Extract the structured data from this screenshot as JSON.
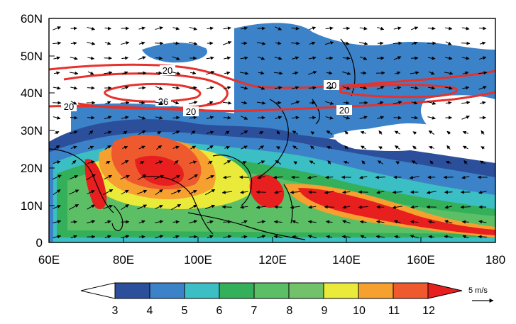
{
  "map": {
    "lat_ticks": [
      "60N",
      "50N",
      "40N",
      "30N",
      "20N",
      "10N",
      "0"
    ],
    "lon_ticks": [
      "60E",
      "80E",
      "100E",
      "120E",
      "140E",
      "160E",
      "180"
    ],
    "contour_labels": [
      "20",
      "26",
      "20",
      "20",
      "20",
      "20"
    ],
    "contour_color": "#e8312b"
  },
  "colorbar": {
    "labels": [
      "3",
      "4",
      "5",
      "6",
      "7",
      "8",
      "9",
      "10",
      "11",
      "12"
    ],
    "colors": [
      "#ffffff",
      "#2c4f9c",
      "#3b82c8",
      "#3bbec4",
      "#35b05a",
      "#5cbf66",
      "#72c26a",
      "#eaea3a",
      "#f6a030",
      "#ee5a2e",
      "#e81f1f"
    ]
  },
  "reference_vector": {
    "label": "5 m/s"
  }
}
